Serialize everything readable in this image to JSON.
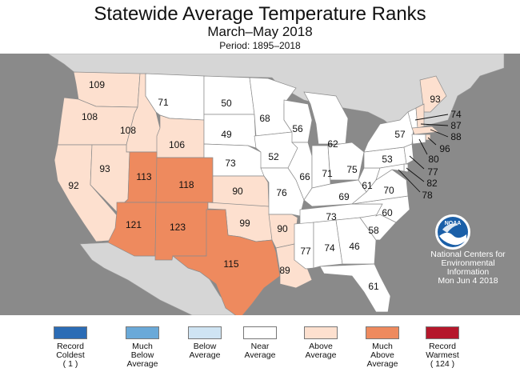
{
  "header": {
    "title": "Statewide Average Temperature Ranks",
    "subtitle": "March–May 2018",
    "period": "Period: 1895–2018"
  },
  "colors": {
    "ocean": "#8a8a8a",
    "record_coldest": "#2b6cb5",
    "much_below": "#6aa9d8",
    "below": "#cfe4f3",
    "near": "#ffffff",
    "above": "#fde0cf",
    "much_above": "#ee8a5e",
    "record_warmest": "#b5172b"
  },
  "states": {
    "WA": {
      "rank": "109",
      "category": "above"
    },
    "OR": {
      "rank": "108",
      "category": "above"
    },
    "CA": {
      "rank": "92",
      "category": "above"
    },
    "ID": {
      "rank": "108",
      "category": "above"
    },
    "NV": {
      "rank": "93",
      "category": "above"
    },
    "MT": {
      "rank": "71",
      "category": "near"
    },
    "WY": {
      "rank": "106",
      "category": "above"
    },
    "UT": {
      "rank": "113",
      "category": "much_above"
    },
    "CO": {
      "rank": "118",
      "category": "much_above"
    },
    "AZ": {
      "rank": "121",
      "category": "much_above"
    },
    "NM": {
      "rank": "123",
      "category": "much_above"
    },
    "ND": {
      "rank": "50",
      "category": "near"
    },
    "SD": {
      "rank": "49",
      "category": "near"
    },
    "NE": {
      "rank": "73",
      "category": "near"
    },
    "KS": {
      "rank": "90",
      "category": "above"
    },
    "OK": {
      "rank": "99",
      "category": "above"
    },
    "TX": {
      "rank": "115",
      "category": "much_above"
    },
    "MN": {
      "rank": "68",
      "category": "near"
    },
    "IA": {
      "rank": "52",
      "category": "near"
    },
    "MO": {
      "rank": "76",
      "category": "near"
    },
    "AR": {
      "rank": "90",
      "category": "above"
    },
    "LA": {
      "rank": "89",
      "category": "above"
    },
    "WI": {
      "rank": "56",
      "category": "near"
    },
    "IL": {
      "rank": "66",
      "category": "near"
    },
    "MI": {
      "rank": "62",
      "category": "near"
    },
    "IN": {
      "rank": "71",
      "category": "near"
    },
    "OH": {
      "rank": "75",
      "category": "near"
    },
    "KY": {
      "rank": "69",
      "category": "near"
    },
    "TN": {
      "rank": "73",
      "category": "near"
    },
    "MS": {
      "rank": "77",
      "category": "near"
    },
    "AL": {
      "rank": "74",
      "category": "near"
    },
    "GA": {
      "rank": "46",
      "category": "near"
    },
    "FL": {
      "rank": "61",
      "category": "near"
    },
    "SC": {
      "rank": "58",
      "category": "near"
    },
    "NC": {
      "rank": "60",
      "category": "near"
    },
    "VA": {
      "rank": "70",
      "category": "near"
    },
    "WV": {
      "rank": "61",
      "category": "near"
    },
    "PA": {
      "rank": "53",
      "category": "near"
    },
    "NY": {
      "rank": "57",
      "category": "near"
    },
    "ME": {
      "rank": "93",
      "category": "above"
    },
    "VT": {
      "rank": "74",
      "category": "near"
    },
    "NH": {
      "rank": "87",
      "category": "above"
    },
    "MA": {
      "rank": "88",
      "category": "above"
    },
    "RI": {
      "rank": "96",
      "category": "above"
    },
    "CT": {
      "rank": "80",
      "category": "near"
    },
    "NJ": {
      "rank": "77",
      "category": "near"
    },
    "DE": {
      "rank": "82",
      "category": "near"
    },
    "MD": {
      "rank": "78",
      "category": "near"
    }
  },
  "attribution": {
    "logo_text": "NOAA",
    "lines": [
      "National Centers for",
      "Environmental",
      "Information",
      "Mon Jun  4 2018"
    ]
  },
  "legend": [
    {
      "label": [
        "Record",
        "Coldest",
        "( 1 )"
      ],
      "color_key": "record_coldest"
    },
    {
      "label": [
        "Much",
        "Below",
        "Average"
      ],
      "color_key": "much_below"
    },
    {
      "label": [
        "Below",
        "Average"
      ],
      "color_key": "below"
    },
    {
      "label": [
        "Near",
        "Average"
      ],
      "color_key": "near"
    },
    {
      "label": [
        "Above",
        "Average"
      ],
      "color_key": "above"
    },
    {
      "label": [
        "Much",
        "Above",
        "Average"
      ],
      "color_key": "much_above"
    },
    {
      "label": [
        "Record",
        "Warmest",
        "( 124 )"
      ],
      "color_key": "record_warmest"
    }
  ]
}
